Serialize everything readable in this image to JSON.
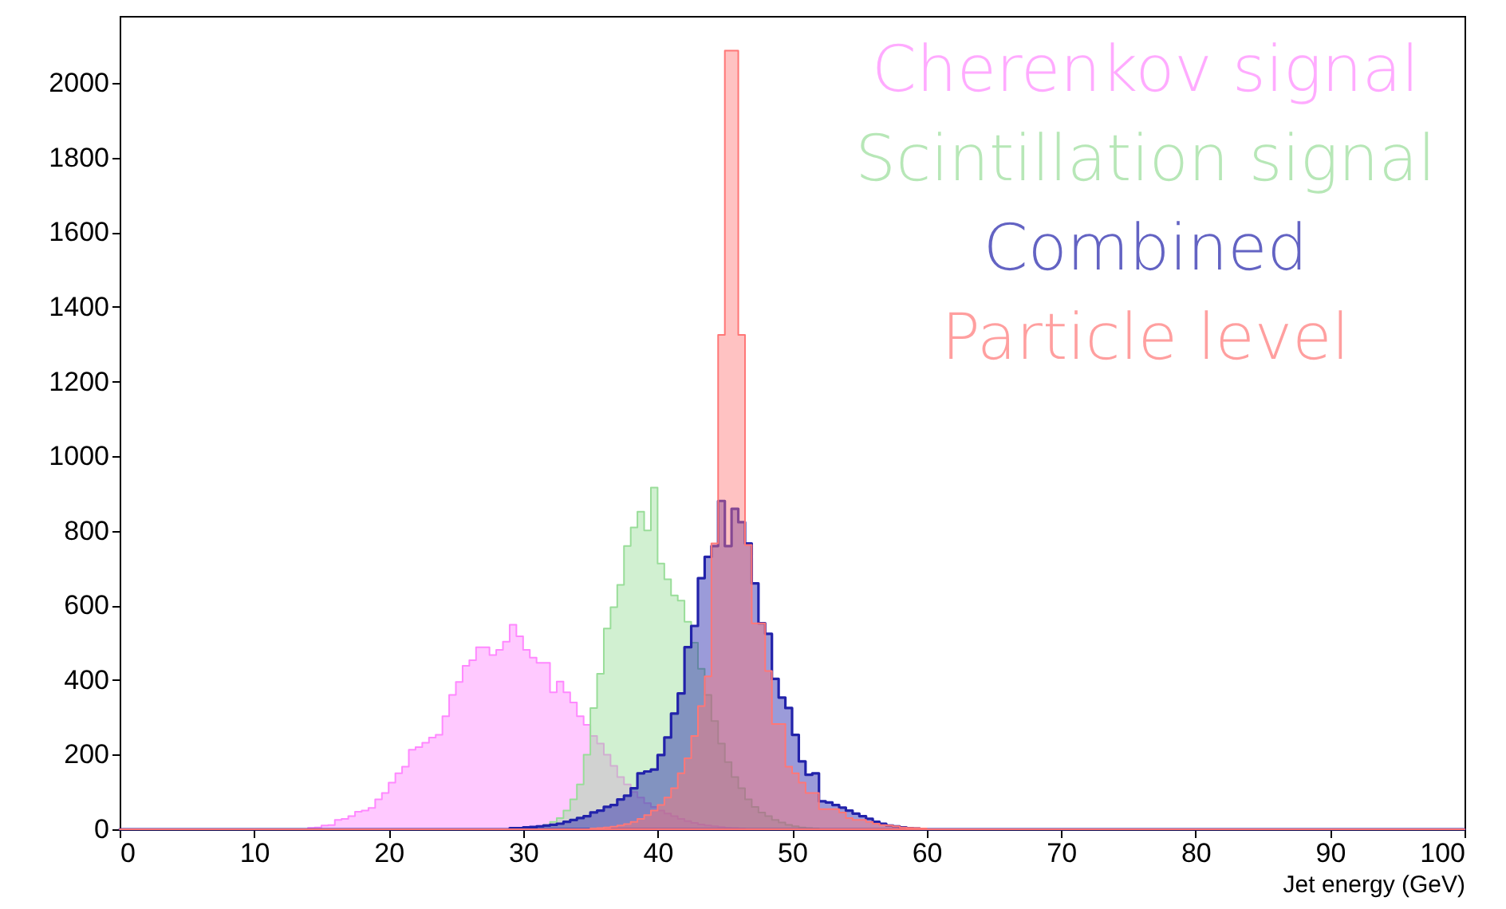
{
  "chart_data": {
    "type": "histogram",
    "xlabel": "Jet energy (GeV)",
    "bins": [
      0,
      14,
      14.5,
      15,
      15.5,
      16,
      16.5,
      17,
      17.5,
      18,
      18.5,
      19,
      19.5,
      20,
      20.5,
      21,
      21.5,
      22,
      22.5,
      23,
      23.5,
      24,
      24.5,
      25,
      25.5,
      26,
      26.5,
      27,
      27.5,
      28,
      28.5,
      29,
      29.5,
      30,
      30.5,
      31,
      31.5,
      32,
      32.5,
      33,
      33.5,
      34,
      34.5,
      35,
      35.5,
      36,
      36.5,
      37,
      37.5,
      38,
      38.5,
      39,
      39.5,
      40,
      40.5,
      41,
      41.5,
      42,
      42.5,
      43,
      43.5,
      44,
      44.5,
      45,
      45.5,
      46,
      46.5,
      47,
      47.5,
      48,
      48.5,
      49,
      49.5,
      50,
      50.5,
      51,
      51.5,
      52,
      52.5,
      53,
      53.5,
      54,
      54.5,
      55,
      55.5,
      56,
      56.5,
      57,
      57.5,
      58,
      58.5,
      59,
      59.5,
      60,
      60.5,
      61,
      100
    ],
    "series": [
      {
        "name": "Cherenkov signal",
        "color": "#ff88ff",
        "values": [
          0,
          4,
          5,
          10,
          11,
          25,
          28,
          35,
          47,
          50,
          57,
          80,
          97,
          125,
          150,
          168,
          213,
          220,
          232,
          246,
          253,
          303,
          360,
          395,
          438,
          453,
          488,
          488,
          467,
          481,
          503,
          548,
          517,
          481,
          460,
          446,
          446,
          367,
          396,
          367,
          340,
          303,
          280,
          250,
          230,
          200,
          170,
          140,
          120,
          100,
          85,
          70,
          60,
          50,
          42,
          35,
          28,
          22,
          17,
          13,
          10,
          8,
          6,
          4,
          3,
          2,
          0,
          0,
          0,
          0,
          0,
          0,
          0,
          0,
          0,
          0,
          0,
          0,
          0,
          0,
          0,
          0,
          0,
          0,
          0,
          0,
          0,
          0,
          0,
          0,
          0,
          0,
          0,
          0,
          0,
          0
        ]
      },
      {
        "name": "Scintillation signal",
        "color": "#99dd99",
        "values": [
          0,
          0,
          0,
          0,
          0,
          0,
          0,
          0,
          0,
          0,
          0,
          0,
          0,
          0,
          0,
          0,
          0,
          0,
          0,
          0,
          0,
          0,
          0,
          0,
          0,
          0,
          0,
          0,
          0,
          0,
          0,
          0,
          2,
          3,
          5,
          8,
          12,
          20,
          30,
          50,
          80,
          120,
          200,
          325,
          417,
          538,
          595,
          655,
          759,
          809,
          851,
          801,
          916,
          712,
          670,
          627,
          613,
          556,
          500,
          430,
          360,
          290,
          230,
          180,
          140,
          110,
          80,
          60,
          45,
          35,
          25,
          18,
          12,
          8,
          5,
          3,
          2,
          0,
          0,
          0,
          0,
          0,
          0,
          0,
          0,
          0,
          0,
          0,
          0,
          0,
          0,
          0,
          0,
          0,
          0,
          0
        ]
      },
      {
        "name": "Combined",
        "color": "#2222aa",
        "values": [
          0,
          0,
          0,
          0,
          0,
          0,
          0,
          0,
          0,
          0,
          0,
          0,
          0,
          0,
          0,
          0,
          0,
          0,
          0,
          0,
          0,
          0,
          0,
          0,
          0,
          0,
          0,
          0,
          0,
          0,
          0,
          3,
          3,
          5,
          6,
          8,
          10,
          12,
          15,
          20,
          25,
          30,
          35,
          45,
          50,
          60,
          65,
          80,
          90,
          110,
          150,
          155,
          160,
          199,
          246,
          310,
          364,
          488,
          545,
          673,
          730,
          759,
          880,
          759,
          859,
          823,
          766,
          659,
          552,
          524,
          403,
          353,
          325,
          253,
          182,
          146,
          150,
          75,
          72,
          65,
          58,
          50,
          42,
          35,
          28,
          20,
          15,
          10,
          8,
          5,
          3,
          2,
          0,
          0,
          0,
          0
        ]
      },
      {
        "name": "Particle level",
        "color": "#ff7777",
        "values": [
          0,
          0,
          0,
          0,
          0,
          0,
          0,
          0,
          0,
          0,
          0,
          0,
          0,
          0,
          0,
          0,
          0,
          0,
          0,
          0,
          0,
          0,
          0,
          0,
          0,
          0,
          0,
          0,
          0,
          0,
          0,
          0,
          0,
          0,
          0,
          0,
          0,
          0,
          0,
          0,
          0,
          0,
          0,
          2,
          3,
          5,
          7,
          10,
          14,
          20,
          28,
          38,
          50,
          65,
          85,
          110,
          150,
          190,
          250,
          330,
          410,
          766,
          1325,
          2087,
          2087,
          1325,
          762,
          552,
          552,
          424,
          282,
          282,
          168,
          150,
          125,
          97,
          97,
          54,
          54,
          54,
          45,
          30,
          25,
          25,
          20,
          15,
          11,
          10,
          8,
          5,
          4,
          3,
          2,
          0,
          0,
          0
        ]
      }
    ],
    "xlim": [
      0,
      100
    ],
    "xticks": [
      0,
      10,
      20,
      30,
      40,
      50,
      60,
      70,
      80,
      90,
      100
    ],
    "ylim": [
      0,
      2180
    ],
    "yticks": [
      0,
      200,
      400,
      600,
      800,
      1000,
      1200,
      1400,
      1600,
      1800,
      2000
    ],
    "legend": "top right"
  }
}
